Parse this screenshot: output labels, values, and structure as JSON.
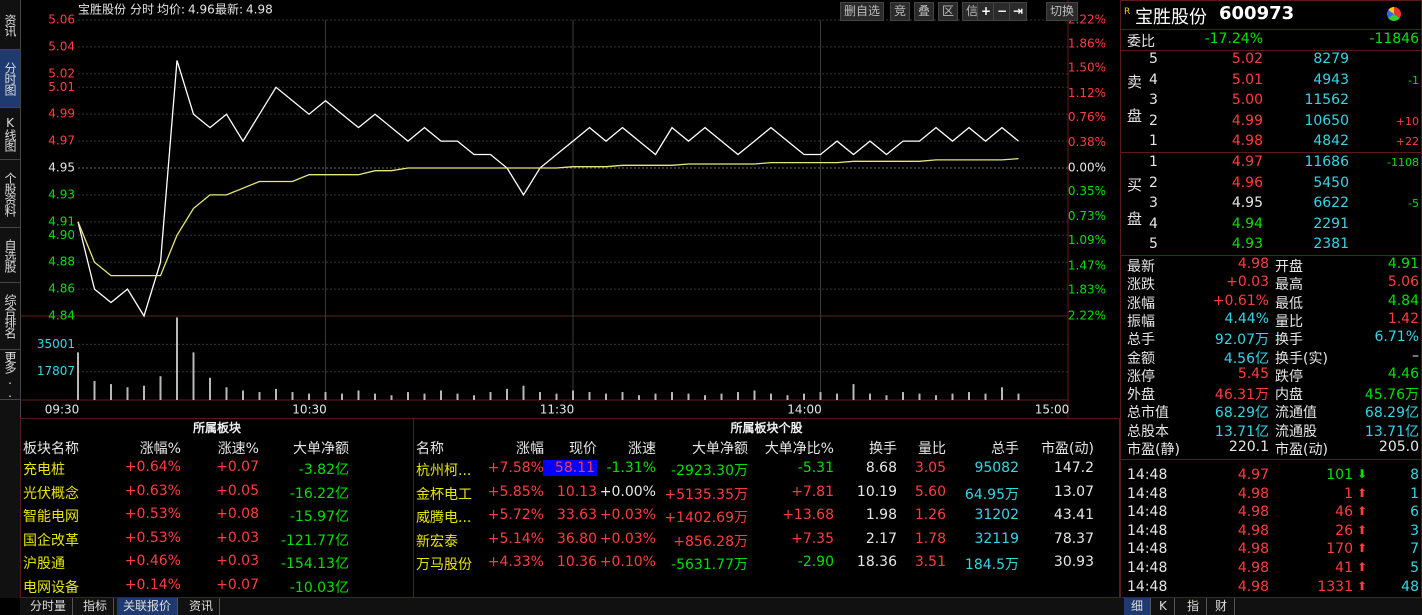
{
  "header": {
    "stock": "宝胜股份",
    "mode": "分时",
    "avg_label": "均价:",
    "avg": "4.96",
    "last_label": "最新:",
    "last": "4.98"
  },
  "toolbar": [
    "删自选",
    "竞",
    "叠",
    "区",
    "信息",
    "切换"
  ],
  "sidebar": [
    "资讯",
    "分时图",
    "K线图",
    "个股资料",
    "自选股",
    "综合排名",
    "更多.."
  ],
  "chart_data": [
    {
      "type": "line",
      "x": [
        "09:30",
        "09:34",
        "09:38",
        "09:42",
        "09:46",
        "09:50",
        "09:54",
        "09:58",
        "10:02",
        "10:06",
        "10:10",
        "10:14",
        "10:18",
        "10:22",
        "10:26",
        "10:30",
        "10:34",
        "10:38",
        "10:42",
        "10:46",
        "10:50",
        "10:54",
        "10:58",
        "11:02",
        "11:06",
        "11:10",
        "11:14",
        "11:18",
        "11:22",
        "11:26",
        "13:00",
        "13:04",
        "13:08",
        "13:12",
        "13:16",
        "13:20",
        "13:24",
        "13:28",
        "13:32",
        "13:36",
        "13:40",
        "13:44",
        "13:48",
        "13:52",
        "13:56",
        "14:00",
        "14:04",
        "14:08",
        "14:12",
        "14:16",
        "14:20",
        "14:24",
        "14:28",
        "14:32",
        "14:36",
        "14:40",
        "14:44",
        "14:48"
      ],
      "series": [
        {
          "color": "#ffffff",
          "values": [
            4.91,
            4.86,
            4.85,
            4.86,
            4.84,
            4.88,
            5.03,
            4.99,
            4.98,
            4.99,
            4.97,
            4.99,
            5.01,
            5.0,
            4.99,
            5.0,
            4.99,
            4.98,
            4.99,
            4.98,
            4.97,
            4.98,
            4.97,
            4.97,
            4.96,
            4.96,
            4.95,
            4.93,
            4.95,
            4.96,
            4.97,
            4.98,
            4.97,
            4.98,
            4.97,
            4.96,
            4.98,
            4.97,
            4.98,
            4.97,
            4.96,
            4.97,
            4.98,
            4.97,
            4.96,
            4.96,
            4.97,
            4.96,
            4.97,
            4.96,
            4.97,
            4.97,
            4.98,
            4.97,
            4.98,
            4.97,
            4.98,
            4.97
          ]
        },
        {
          "color": "#e8e87a",
          "values": [
            4.91,
            4.88,
            4.87,
            4.87,
            4.87,
            4.87,
            4.9,
            4.92,
            4.93,
            4.93,
            4.935,
            4.94,
            4.94,
            4.94,
            4.945,
            4.945,
            4.945,
            4.945,
            4.948,
            4.948,
            4.95,
            4.95,
            4.95,
            4.95,
            4.95,
            4.95,
            4.95,
            4.95,
            4.95,
            4.95,
            4.951,
            4.951,
            4.951,
            4.952,
            4.952,
            4.952,
            4.952,
            4.953,
            4.953,
            4.953,
            4.953,
            4.953,
            4.954,
            4.954,
            4.954,
            4.954,
            4.954,
            4.955,
            4.955,
            4.955,
            4.955,
            4.955,
            4.956,
            4.956,
            4.956,
            4.956,
            4.956,
            4.957
          ]
        }
      ],
      "ylim": [
        4.84,
        5.06
      ],
      "yticks": [
        5.06,
        5.04,
        5.02,
        5.01,
        4.99,
        4.97,
        4.95,
        4.93,
        4.91,
        {
          "value": 4.9,
          "label": "4.90"
        },
        4.88,
        4.86,
        4.84
      ],
      "y2lim": [
        -2.22,
        2.22
      ],
      "y2ticks": [
        {
          "value": 2.22,
          "label": "2.22%"
        },
        {
          "value": 1.86,
          "label": "1.86%"
        },
        {
          "value": 1.5,
          "label": "1.50%"
        },
        {
          "value": 1.12,
          "label": "1.12%"
        },
        {
          "value": 0.76,
          "label": "0.76%"
        },
        {
          "value": 0.38,
          "label": "0.38%"
        },
        {
          "value": 0,
          "label": "0.00%"
        },
        {
          "value": -0.35,
          "label": "0.35%"
        },
        {
          "value": -0.73,
          "label": "0.73%"
        },
        {
          "value": -1.09,
          "label": "1.09%"
        },
        {
          "value": -1.47,
          "label": "1.47%"
        },
        {
          "value": -1.83,
          "label": "1.83%"
        },
        {
          "value": -2.22,
          "label": "2.22%"
        }
      ],
      "grid": true
    },
    {
      "type": "bar",
      "x": [
        "09:30",
        "09:34",
        "09:38",
        "09:42",
        "09:46",
        "09:50",
        "09:54",
        "09:58",
        "10:02",
        "10:06",
        "10:10",
        "10:14",
        "10:18",
        "10:22",
        "10:26",
        "10:30",
        "10:34",
        "10:38",
        "10:42",
        "10:46",
        "10:50",
        "10:54",
        "10:58",
        "11:02",
        "11:06",
        "11:10",
        "11:14",
        "11:18",
        "11:22",
        "11:26",
        "13:00",
        "13:04",
        "13:08",
        "13:12",
        "13:16",
        "13:20",
        "13:24",
        "13:28",
        "13:32",
        "13:36",
        "13:40",
        "13:44",
        "13:48",
        "13:52",
        "13:56",
        "14:00",
        "14:04",
        "14:08",
        "14:12",
        "14:16",
        "14:20",
        "14:24",
        "14:28",
        "14:32",
        "14:36",
        "14:40",
        "14:44",
        "14:48"
      ],
      "values": [
        30000,
        12000,
        10000,
        8000,
        9000,
        15000,
        52000,
        30000,
        14000,
        8000,
        6000,
        5000,
        7000,
        5000,
        4000,
        5000,
        4000,
        6000,
        4000,
        3000,
        5000,
        4000,
        6000,
        4000,
        3000,
        5000,
        7000,
        9000,
        5000,
        4000,
        6000,
        5000,
        4000,
        5000,
        3000,
        4000,
        5000,
        4000,
        3000,
        4000,
        5000,
        6000,
        4000,
        3000,
        4000,
        5000,
        4000,
        10000,
        4000,
        3000,
        5000,
        4000,
        3000,
        4000,
        5000,
        4000,
        8000,
        4000
      ],
      "color": "#b8b8b8",
      "ylim": [
        0,
        52900
      ],
      "yticks": [
        17807,
        35001
      ],
      "xticks": [
        "09:30",
        "10:30",
        "11:30",
        "14:00",
        "15:00"
      ],
      "grid": true
    }
  ],
  "sector": {
    "title": "所属板块",
    "columns": [
      "板块名称",
      "涨幅%",
      "涨速%",
      "大单净额"
    ],
    "rows": [
      [
        "充电桩",
        "+0.64%",
        "+0.07",
        "-3.82亿"
      ],
      [
        "光伏概念",
        "+0.63%",
        "+0.05",
        "-16.22亿"
      ],
      [
        "智能电网",
        "+0.53%",
        "+0.08",
        "-15.97亿"
      ],
      [
        "国企改革",
        "+0.53%",
        "+0.03",
        "-121.77亿"
      ],
      [
        "沪股通",
        "+0.46%",
        "+0.03",
        "-154.13亿"
      ],
      [
        "电网设备",
        "+0.14%",
        "+0.07",
        "-10.03亿"
      ]
    ]
  },
  "stocks": {
    "title": "所属板块个股",
    "columns": [
      "名称",
      "涨幅",
      "现价",
      "涨速",
      "大单净额",
      "大单净比%",
      "换手",
      "量比",
      "总手",
      "市盈(动)"
    ],
    "rows": [
      [
        "杭州柯...",
        "+7.58%",
        "58.11",
        "-1.31%",
        "-2923.30万",
        "-5.31",
        "8.68",
        "3.05",
        "95082",
        "147.2"
      ],
      [
        "金杯电工",
        "+5.85%",
        "10.13",
        "+0.00%",
        "+5135.35万",
        "+7.81",
        "10.19",
        "5.60",
        "64.95万",
        "13.07"
      ],
      [
        "威腾电...",
        "+5.72%",
        "33.63",
        "+0.03%",
        "+1402.69万",
        "+13.68",
        "1.98",
        "1.26",
        "31202",
        "43.41"
      ],
      [
        "新宏泰",
        "+5.14%",
        "36.80",
        "+0.03%",
        "+856.28万",
        "+7.35",
        "2.17",
        "1.78",
        "32119",
        "78.37"
      ],
      [
        "万马股份",
        "+4.33%",
        "10.36",
        "+0.10%",
        "-5631.77万",
        "-2.90",
        "18.36",
        "3.51",
        "184.5万",
        "30.93"
      ]
    ]
  },
  "quote": {
    "name": "宝胜股份",
    "code": "600973",
    "weibi_label": "委比",
    "weibi_pct": "-17.24%",
    "weibi_diff": "-11846",
    "sell_label": [
      "卖",
      "盘"
    ],
    "buy_label": [
      "买",
      "盘"
    ],
    "sell": [
      {
        "level": "5",
        "price": "5.02",
        "vol": "8279",
        "color": "red"
      },
      {
        "level": "4",
        "price": "5.01",
        "vol": "4943",
        "chg": "-1",
        "color": "red"
      },
      {
        "level": "3",
        "price": "5.00",
        "vol": "11562",
        "color": "red"
      },
      {
        "level": "2",
        "price": "4.99",
        "vol": "10650",
        "chg": "+10",
        "color": "red"
      },
      {
        "level": "1",
        "price": "4.98",
        "vol": "4842",
        "chg": "+22",
        "color": "red"
      }
    ],
    "buy": [
      {
        "level": "1",
        "price": "4.97",
        "vol": "11686",
        "chg": "-1108",
        "color": "red"
      },
      {
        "level": "2",
        "price": "4.96",
        "vol": "5450",
        "color": "red"
      },
      {
        "level": "3",
        "price": "4.95",
        "vol": "6622",
        "chg": "-5",
        "color": "white"
      },
      {
        "level": "4",
        "price": "4.94",
        "vol": "2291",
        "color": "green"
      },
      {
        "level": "5",
        "price": "4.93",
        "vol": "2381",
        "color": "green"
      }
    ],
    "stats": [
      {
        "label": "最新",
        "value": "4.98",
        "color": "red"
      },
      {
        "label": "开盘",
        "value": "4.91",
        "color": "green"
      },
      {
        "label": "涨跌",
        "value": "+0.03",
        "color": "red"
      },
      {
        "label": "最高",
        "value": "5.06",
        "color": "red"
      },
      {
        "label": "涨幅",
        "value": "+0.61%",
        "color": "red"
      },
      {
        "label": "最低",
        "value": "4.84",
        "color": "green"
      },
      {
        "label": "振幅",
        "value": "4.44%",
        "color": "cyan"
      },
      {
        "label": "量比",
        "value": "1.42",
        "color": "red"
      },
      {
        "label": "总手",
        "value": "92.07万",
        "color": "cyan"
      },
      {
        "label": "换手",
        "value": "6.71%",
        "color": "cyan"
      },
      {
        "label": "金额",
        "value": "4.56亿",
        "color": "cyan"
      },
      {
        "label": "换手(实)",
        "value": "–",
        "color": "white"
      },
      {
        "label": "涨停",
        "value": "5.45",
        "color": "red"
      },
      {
        "label": "跌停",
        "value": "4.46",
        "color": "green"
      },
      {
        "label": "外盘",
        "value": "46.31万",
        "color": "red"
      },
      {
        "label": "内盘",
        "value": "45.76万",
        "color": "green"
      },
      {
        "label": "总市值",
        "value": "68.29亿",
        "color": "cyan"
      },
      {
        "label": "流通值",
        "value": "68.29亿",
        "color": "cyan"
      },
      {
        "label": "总股本",
        "value": "13.71亿",
        "color": "cyan"
      },
      {
        "label": "流通股",
        "value": "13.71亿",
        "color": "cyan"
      },
      {
        "label": "市盈(静)",
        "value": "220.1",
        "color": "white"
      },
      {
        "label": "市盈(动)",
        "value": "205.0",
        "color": "white"
      }
    ],
    "ticks": [
      {
        "time": "14:48",
        "price": "4.97",
        "vol": "101",
        "dir": "down",
        "count": "8"
      },
      {
        "time": "14:48",
        "price": "4.98",
        "vol": "1",
        "dir": "up",
        "count": "1"
      },
      {
        "time": "14:48",
        "price": "4.98",
        "vol": "46",
        "dir": "up",
        "count": "6"
      },
      {
        "time": "14:48",
        "price": "4.98",
        "vol": "26",
        "dir": "up",
        "count": "3"
      },
      {
        "time": "14:48",
        "price": "4.98",
        "vol": "170",
        "dir": "up",
        "count": "7"
      },
      {
        "time": "14:48",
        "price": "4.98",
        "vol": "41",
        "dir": "up",
        "count": "5"
      },
      {
        "time": "14:48",
        "price": "4.98",
        "vol": "1331",
        "dir": "up",
        "count": "48"
      }
    ]
  },
  "bottom_tabs": [
    "分时量",
    "指标",
    "关联报价",
    "资讯"
  ],
  "right_tabs": [
    "细",
    "K",
    "指",
    "财"
  ]
}
